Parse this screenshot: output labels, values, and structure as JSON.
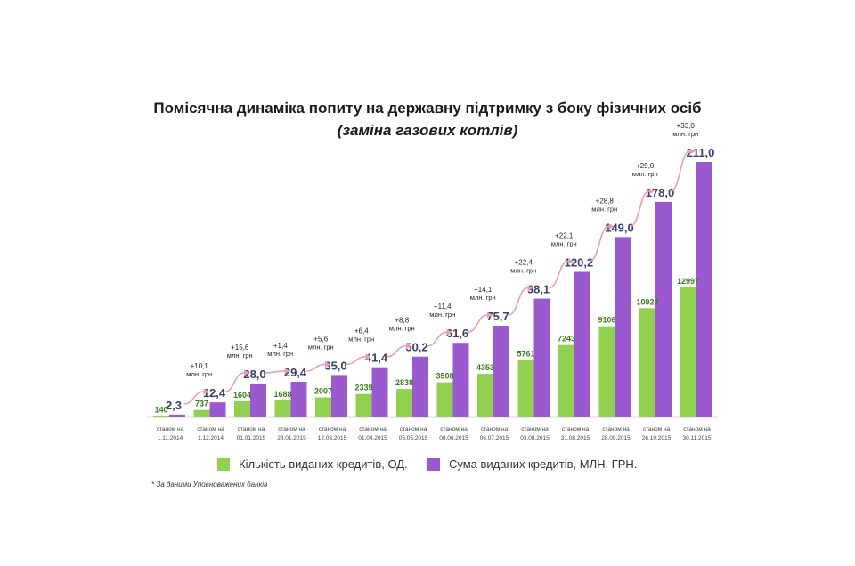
{
  "title": "Помісячна динаміка попиту на державну підтримку з боку фізичних осіб",
  "subtitle": "(заміна газових котлів)",
  "legend": {
    "count_label": "Кількість виданих кредитів, ОД.",
    "sum_label": "Сума виданих кредитів, МЛН. ГРН."
  },
  "footnote": "* За даними Уповноважених банків",
  "colors": {
    "count": "#92d050",
    "sum": "#9b59d0",
    "arrow": "#e8a0a8",
    "count_label": "#3a7d1e",
    "sum_label": "#3b3f6b"
  },
  "chart_data": {
    "type": "bar",
    "categories": [
      [
        "станом на",
        "1.11.2014"
      ],
      [
        "станом на",
        "1.12.2014"
      ],
      [
        "станом на",
        "01.01.2015"
      ],
      [
        "станом на",
        "28.01.2015"
      ],
      [
        "станом на",
        "12.03.2015"
      ],
      [
        "станом на",
        "01.04.2015"
      ],
      [
        "станом на",
        "05.05.2015"
      ],
      [
        "станом на",
        "08.06.2015"
      ],
      [
        "станом на",
        "06.07.2015"
      ],
      [
        "станом на",
        "03.08.2015"
      ],
      [
        "станом на",
        "31.08.2015"
      ],
      [
        "станом на",
        "28.09.2015"
      ],
      [
        "станом на",
        "26.10.2015"
      ],
      [
        "станом на",
        "30.11.2015"
      ]
    ],
    "series": [
      {
        "name": "Кількість виданих кредитів, ОД.",
        "values": [
          140,
          737,
          1604,
          1688,
          2007,
          2339,
          2838,
          3508,
          4353,
          5761,
          7243,
          9106,
          10924,
          12997
        ]
      },
      {
        "name": "Сума виданих кредитів, МЛН. ГРН.",
        "values": [
          2.3,
          12.4,
          28.0,
          29.4,
          35.0,
          41.4,
          50.2,
          61.6,
          75.7,
          98.1,
          120.2,
          149.0,
          178.0,
          211.0
        ]
      }
    ],
    "count_labels": [
      "140",
      "737",
      "1604",
      "1688",
      "2007",
      "2339",
      "2838",
      "3508",
      "4353",
      "5761",
      "7243",
      "9106",
      "10924",
      "12997"
    ],
    "sum_labels": [
      "2,3",
      "12,4",
      "28,0",
      "29,4",
      "35,0",
      "41,4",
      "50,2",
      "61,6",
      "75,7",
      "98,1",
      "120,2",
      "149,0",
      "178,0",
      "211,0"
    ],
    "increments": [
      [
        "+10,1",
        "млн. грн"
      ],
      [
        "+15,6",
        "млн. грн"
      ],
      [
        "+1,4",
        "млн. грн"
      ],
      [
        "+5,6",
        "млн. грн"
      ],
      [
        "+6,4",
        "млн. грн"
      ],
      [
        "+8,8",
        "млн. грн"
      ],
      [
        "+11,4",
        "млн. грн"
      ],
      [
        "+14,1",
        "млн. грн"
      ],
      [
        "+22,4",
        "млн. грн"
      ],
      [
        "+22,1",
        "млн. грн"
      ],
      [
        "+28,8",
        "млн. грн"
      ],
      [
        "+29,0",
        "млн. грн"
      ],
      [
        "+33,0",
        "млн. грн"
      ]
    ],
    "grid": false,
    "legend_position": "bottom"
  }
}
